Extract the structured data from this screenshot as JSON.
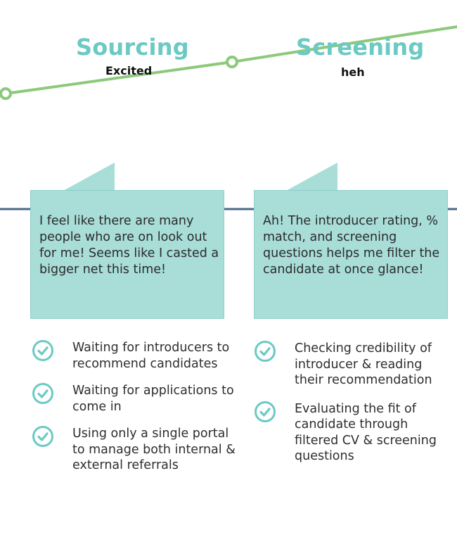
{
  "stages": [
    {
      "title": "Sourcing",
      "emotion": "Excited",
      "quote": "I feel like there are many people who are on look out for me! Seems like I casted a bigger net this time!",
      "tasks": [
        "Waiting for introducers to recommend candidates",
        "Waiting for applications to come in",
        "Using only a single portal to manage both internal & external referrals"
      ]
    },
    {
      "title": "Screening",
      "emotion": "heh",
      "quote": "Ah! The introducer rating, % match, and screening questions helps me filter the candidate at once glance!",
      "tasks": [
        "Checking credibility of introducer & reading their recommendation",
        "Evaluating the fit of candidate through filtered CV & screening questions"
      ]
    }
  ],
  "colors": {
    "accent_teal": "#6cc9c3",
    "bubble_fill": "#a8ddd8",
    "emotion_line": "#8cc97a",
    "divider": "#4a6a8a"
  },
  "icons": {
    "task_bullet": "check-circle-icon"
  }
}
